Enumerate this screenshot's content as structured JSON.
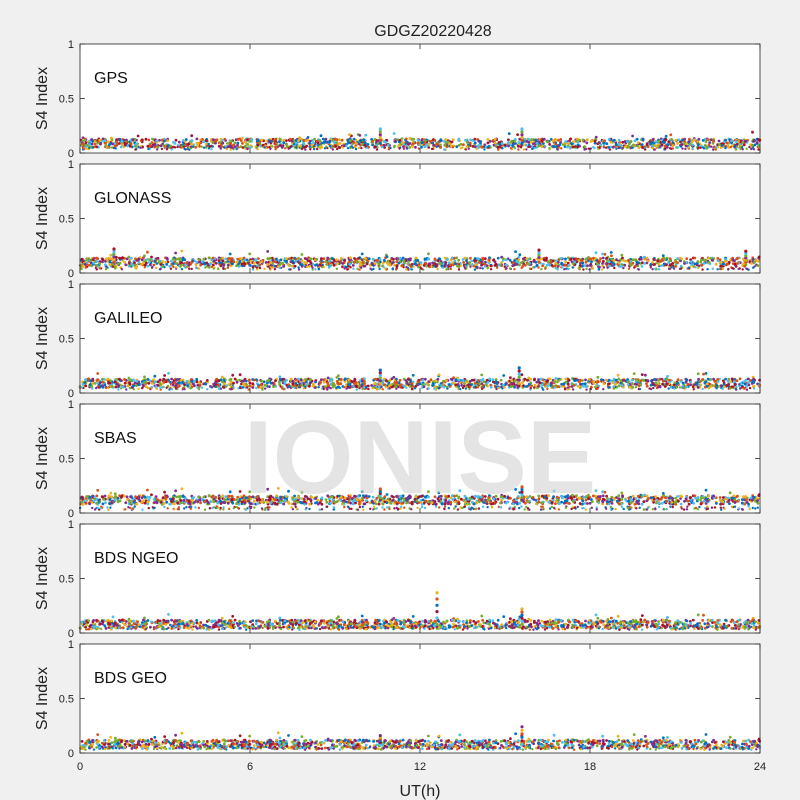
{
  "chart_data": {
    "type": "scatter",
    "title": "GDGZ20220428",
    "xlabel": "UT(h)",
    "ylabel": "S4 Index",
    "xlim": [
      0,
      24
    ],
    "ylim": [
      0,
      1
    ],
    "x_ticks": [
      "0",
      "6",
      "12",
      "18",
      "24"
    ],
    "y_ticks": [
      "0",
      "0.5",
      "1"
    ],
    "watermark": "IONISE",
    "series_colors": [
      "#0072BD",
      "#D95319",
      "#EDB120",
      "#7E2F8E",
      "#77AC30",
      "#4DBEEE",
      "#A2142F"
    ],
    "panels": [
      {
        "name": "GPS",
        "baseline": 0.09,
        "spikes": [
          {
            "x": 10.6,
            "y": 0.22
          },
          {
            "x": 15.6,
            "y": 0.22
          }
        ]
      },
      {
        "name": "GLONASS",
        "baseline": 0.1,
        "spikes": [
          {
            "x": 1.2,
            "y": 0.22
          },
          {
            "x": 16.2,
            "y": 0.21
          },
          {
            "x": 23.5,
            "y": 0.2
          }
        ]
      },
      {
        "name": "GALILEO",
        "baseline": 0.09,
        "spikes": [
          {
            "x": 10.6,
            "y": 0.21
          },
          {
            "x": 15.5,
            "y": 0.23
          }
        ]
      },
      {
        "name": "SBAS",
        "baseline": 0.12,
        "spikes": [
          {
            "x": 10.6,
            "y": 0.22
          },
          {
            "x": 15.6,
            "y": 0.24
          }
        ]
      },
      {
        "name": "BDS NGEO",
        "baseline": 0.08,
        "spikes": [
          {
            "x": 12.6,
            "y": 0.37
          },
          {
            "x": 15.6,
            "y": 0.22
          }
        ]
      },
      {
        "name": "BDS GEO",
        "baseline": 0.08,
        "spikes": [
          {
            "x": 10.6,
            "y": 0.16
          },
          {
            "x": 15.6,
            "y": 0.24
          }
        ]
      }
    ]
  }
}
